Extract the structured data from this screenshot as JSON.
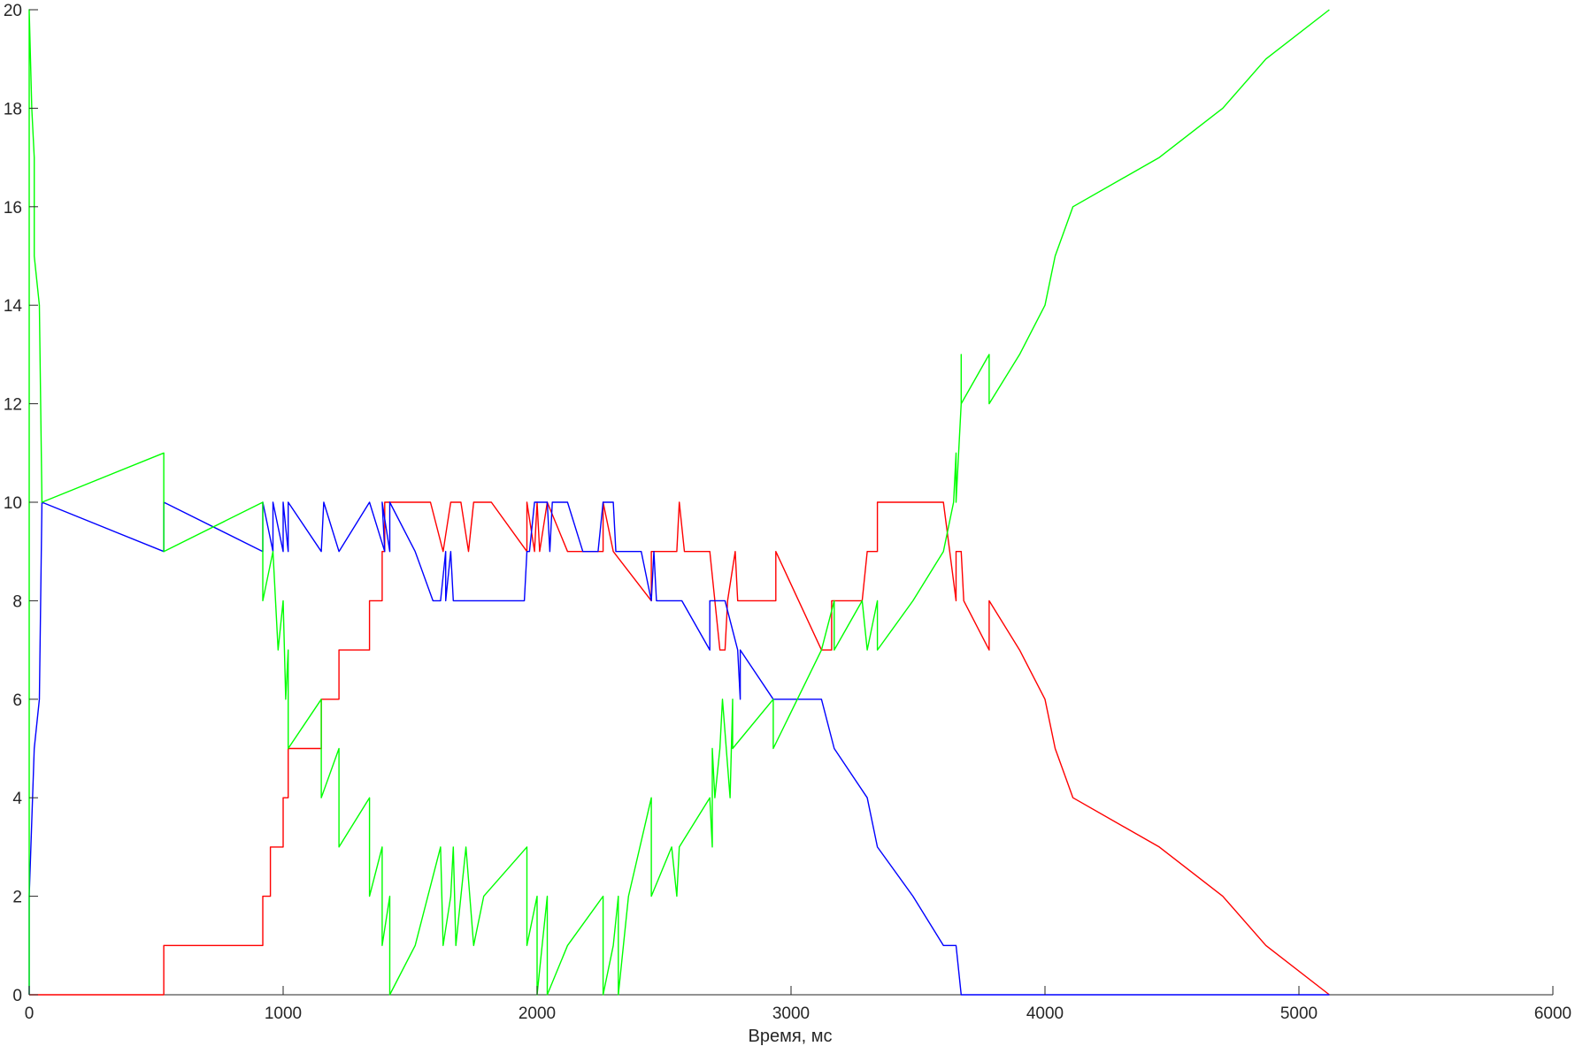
{
  "chart_data": {
    "type": "line",
    "title": "",
    "xlabel": "Время, мс",
    "ylabel": "",
    "xlim": [
      0,
      6000
    ],
    "ylim": [
      0,
      20
    ],
    "grid": false,
    "legend": "none",
    "x_ticks": [
      "0",
      "1000",
      "2000",
      "3000",
      "4000",
      "5000",
      "6000"
    ],
    "y_ticks": [
      "0",
      "2",
      "4",
      "6",
      "8",
      "10",
      "12",
      "14",
      "16",
      "18",
      "20"
    ],
    "series": [
      {
        "color": "#ff0000",
        "points": [
          [
            0,
            0
          ],
          [
            530,
            0
          ],
          [
            530,
            1
          ],
          [
            920,
            1
          ],
          [
            920,
            2
          ],
          [
            950,
            2
          ],
          [
            950,
            3
          ],
          [
            1000,
            3
          ],
          [
            1000,
            4
          ],
          [
            1020,
            4
          ],
          [
            1020,
            5
          ],
          [
            1150,
            5
          ],
          [
            1150,
            6
          ],
          [
            1220,
            6
          ],
          [
            1220,
            7
          ],
          [
            1340,
            7
          ],
          [
            1340,
            8
          ],
          [
            1390,
            8
          ],
          [
            1390,
            9
          ],
          [
            1400,
            9
          ],
          [
            1400,
            10
          ],
          [
            1580,
            10
          ],
          [
            1630,
            9
          ],
          [
            1660,
            10
          ],
          [
            1700,
            10
          ],
          [
            1730,
            9
          ],
          [
            1750,
            10
          ],
          [
            1820,
            10
          ],
          [
            1960,
            9
          ],
          [
            1960,
            10
          ],
          [
            1990,
            9
          ],
          [
            2000,
            10
          ],
          [
            2010,
            9
          ],
          [
            2040,
            10
          ],
          [
            2120,
            9
          ],
          [
            2260,
            9
          ],
          [
            2260,
            10
          ],
          [
            2300,
            9
          ],
          [
            2450,
            8
          ],
          [
            2450,
            9
          ],
          [
            2550,
            9
          ],
          [
            2560,
            10
          ],
          [
            2580,
            9
          ],
          [
            2680,
            9
          ],
          [
            2720,
            7
          ],
          [
            2740,
            7
          ],
          [
            2750,
            8
          ],
          [
            2780,
            9
          ],
          [
            2790,
            8
          ],
          [
            2940,
            8
          ],
          [
            2940,
            9
          ],
          [
            3120,
            7
          ],
          [
            3160,
            7
          ],
          [
            3160,
            8
          ],
          [
            3280,
            8
          ],
          [
            3300,
            9
          ],
          [
            3340,
            9
          ],
          [
            3340,
            10
          ],
          [
            3600,
            10
          ],
          [
            3650,
            8
          ],
          [
            3650,
            9
          ],
          [
            3670,
            9
          ],
          [
            3680,
            8
          ],
          [
            3780,
            7
          ],
          [
            3780,
            8
          ],
          [
            3900,
            7
          ],
          [
            4000,
            6
          ],
          [
            4040,
            5
          ],
          [
            4110,
            4
          ],
          [
            4450,
            3
          ],
          [
            4700,
            2
          ],
          [
            4870,
            1
          ],
          [
            5120,
            0
          ]
        ]
      },
      {
        "color": "#0000ff",
        "points": [
          [
            0,
            0
          ],
          [
            0,
            2
          ],
          [
            20,
            5
          ],
          [
            40,
            6
          ],
          [
            50,
            10
          ],
          [
            530,
            9
          ],
          [
            530,
            10
          ],
          [
            920,
            9
          ],
          [
            920,
            10
          ],
          [
            960,
            9
          ],
          [
            960,
            10
          ],
          [
            1000,
            9
          ],
          [
            1000,
            10
          ],
          [
            1020,
            9
          ],
          [
            1020,
            10
          ],
          [
            1150,
            9
          ],
          [
            1160,
            10
          ],
          [
            1220,
            9
          ],
          [
            1340,
            10
          ],
          [
            1400,
            9
          ],
          [
            1390,
            10
          ],
          [
            1420,
            9
          ],
          [
            1420,
            10
          ],
          [
            1520,
            9
          ],
          [
            1590,
            8
          ],
          [
            1620,
            8
          ],
          [
            1640,
            9
          ],
          [
            1640,
            8
          ],
          [
            1660,
            9
          ],
          [
            1670,
            8
          ],
          [
            1740,
            8
          ],
          [
            1790,
            8
          ],
          [
            1950,
            8
          ],
          [
            1960,
            9
          ],
          [
            1970,
            9
          ],
          [
            1990,
            10
          ],
          [
            2040,
            10
          ],
          [
            2050,
            9
          ],
          [
            2060,
            10
          ],
          [
            2120,
            10
          ],
          [
            2180,
            9
          ],
          [
            2240,
            9
          ],
          [
            2260,
            10
          ],
          [
            2300,
            10
          ],
          [
            2310,
            9
          ],
          [
            2410,
            9
          ],
          [
            2450,
            8
          ],
          [
            2460,
            9
          ],
          [
            2470,
            8
          ],
          [
            2530,
            8
          ],
          [
            2570,
            8
          ],
          [
            2680,
            7
          ],
          [
            2680,
            8
          ],
          [
            2740,
            8
          ],
          [
            2790,
            7
          ],
          [
            2800,
            6
          ],
          [
            2800,
            7
          ],
          [
            2930,
            6
          ],
          [
            3120,
            6
          ],
          [
            3170,
            5
          ],
          [
            3300,
            4
          ],
          [
            3340,
            3
          ],
          [
            3480,
            2
          ],
          [
            3600,
            1
          ],
          [
            3650,
            1
          ],
          [
            3670,
            0
          ],
          [
            5120,
            0
          ]
        ]
      },
      {
        "color": "#00ff00",
        "points": [
          [
            0,
            0
          ],
          [
            0,
            20
          ],
          [
            10,
            18
          ],
          [
            20,
            17
          ],
          [
            20,
            15
          ],
          [
            40,
            14
          ],
          [
            50,
            10
          ],
          [
            530,
            11
          ],
          [
            530,
            9
          ],
          [
            920,
            10
          ],
          [
            920,
            8
          ],
          [
            960,
            9
          ],
          [
            980,
            7
          ],
          [
            1000,
            8
          ],
          [
            1010,
            6
          ],
          [
            1020,
            7
          ],
          [
            1020,
            5
          ],
          [
            1150,
            6
          ],
          [
            1150,
            4
          ],
          [
            1220,
            5
          ],
          [
            1220,
            3
          ],
          [
            1340,
            4
          ],
          [
            1340,
            2
          ],
          [
            1390,
            3
          ],
          [
            1390,
            1
          ],
          [
            1420,
            2
          ],
          [
            1420,
            0
          ],
          [
            1520,
            1
          ],
          [
            1620,
            3
          ],
          [
            1630,
            1
          ],
          [
            1660,
            2
          ],
          [
            1670,
            3
          ],
          [
            1680,
            1
          ],
          [
            1700,
            2
          ],
          [
            1720,
            3
          ],
          [
            1750,
            1
          ],
          [
            1790,
            2
          ],
          [
            1960,
            3
          ],
          [
            1960,
            1
          ],
          [
            2000,
            2
          ],
          [
            2000,
            0
          ],
          [
            2020,
            1
          ],
          [
            2040,
            2
          ],
          [
            2040,
            0
          ],
          [
            2120,
            1
          ],
          [
            2260,
            2
          ],
          [
            2260,
            0
          ],
          [
            2300,
            1
          ],
          [
            2320,
            2
          ],
          [
            2320,
            0
          ],
          [
            2360,
            2
          ],
          [
            2450,
            4
          ],
          [
            2450,
            2
          ],
          [
            2530,
            3
          ],
          [
            2550,
            2
          ],
          [
            2560,
            3
          ],
          [
            2680,
            4
          ],
          [
            2690,
            3
          ],
          [
            2690,
            5
          ],
          [
            2700,
            4
          ],
          [
            2720,
            5
          ],
          [
            2730,
            6
          ],
          [
            2760,
            4
          ],
          [
            2770,
            6
          ],
          [
            2770,
            5
          ],
          [
            2930,
            6
          ],
          [
            2930,
            5
          ],
          [
            3120,
            7
          ],
          [
            3170,
            8
          ],
          [
            3170,
            7
          ],
          [
            3280,
            8
          ],
          [
            3300,
            7
          ],
          [
            3340,
            8
          ],
          [
            3340,
            7
          ],
          [
            3480,
            8
          ],
          [
            3600,
            9
          ],
          [
            3640,
            10
          ],
          [
            3650,
            11
          ],
          [
            3650,
            10
          ],
          [
            3670,
            12
          ],
          [
            3670,
            13
          ],
          [
            3670,
            12
          ],
          [
            3780,
            13
          ],
          [
            3780,
            12
          ],
          [
            3900,
            13
          ],
          [
            4000,
            14
          ],
          [
            4040,
            15
          ],
          [
            4110,
            16
          ],
          [
            4450,
            17
          ],
          [
            4700,
            18
          ],
          [
            4870,
            19
          ],
          [
            5120,
            20
          ]
        ]
      }
    ]
  }
}
